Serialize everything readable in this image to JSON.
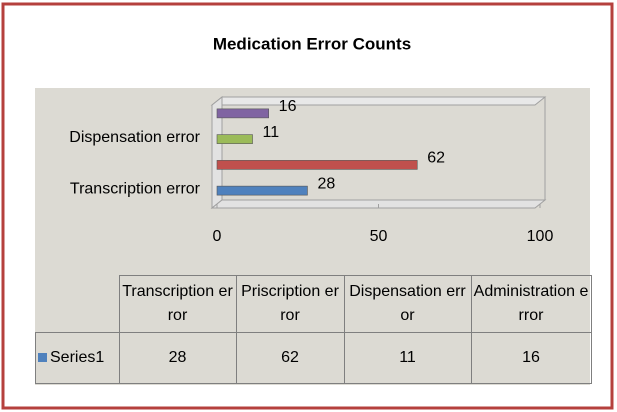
{
  "chart_data": {
    "type": "bar",
    "orientation": "horizontal",
    "title": "Medication Error Counts",
    "categories": [
      "Transcription error",
      "Priscription error",
      "Dispensation error",
      "Administration error"
    ],
    "series": [
      {
        "name": "Series1",
        "color": "#4f81bd",
        "point_colors": [
          "#4f81bd",
          "#c0504d",
          "#9bbb59",
          "#8064a2"
        ],
        "values": [
          28,
          62,
          11,
          16
        ]
      }
    ],
    "xlim": [
      0,
      100
    ],
    "xticks": [
      0,
      50,
      100
    ],
    "grid": false,
    "data_table": true
  }
}
